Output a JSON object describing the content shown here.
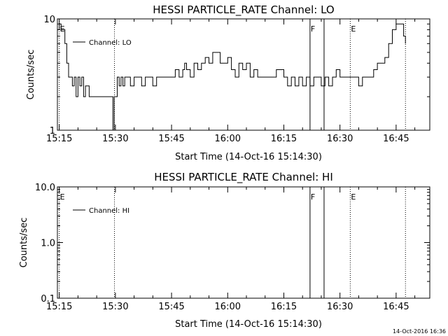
{
  "footer": {
    "timestamp": "14-Oct-2016 16:36"
  },
  "chart_data": [
    {
      "type": "line",
      "title": "HESSI PARTICLE_RATE Channel: LO",
      "xlabel": "Start Time (14-Oct-16 15:14:30)",
      "ylabel": "Counts/sec",
      "yscale": "log",
      "ylim": [
        1,
        10
      ],
      "yticks": [
        "1",
        "10"
      ],
      "xlim": [
        "15:14:30",
        "16:54:00"
      ],
      "xticks": [
        "15:15",
        "15:30",
        "15:45",
        "16:00",
        "16:15",
        "16:30",
        "16:45"
      ],
      "legend": {
        "position": "top-left",
        "entries": [
          "Channel: LO"
        ]
      },
      "grid": false,
      "events": [
        {
          "time": "15:15:00",
          "label": "E",
          "style": "dotted"
        },
        {
          "time": "15:29:45",
          "label": "",
          "style": "dotted"
        },
        {
          "time": "16:22:00",
          "label": "F",
          "style": "solid"
        },
        {
          "time": "16:25:45",
          "label": "",
          "style": "solid"
        },
        {
          "time": "16:32:45",
          "label": "E",
          "style": "dotted"
        },
        {
          "time": "16:47:30",
          "label": "",
          "style": "dotted"
        }
      ],
      "series": [
        {
          "name": "Channel: LO",
          "x": [
            "15:14:30",
            "15:15:00",
            "15:15:30",
            "15:16:00",
            "15:16:30",
            "15:17:00",
            "15:17:30",
            "15:18:00",
            "15:18:30",
            "15:19:00",
            "15:19:30",
            "15:20:00",
            "15:20:30",
            "15:21:00",
            "15:21:30",
            "15:22:00",
            "15:23:00",
            "15:24:00",
            "15:25:00",
            "15:26:00",
            "15:27:00",
            "15:28:00",
            "15:29:00",
            "15:29:20",
            "15:29:40",
            "15:30:00",
            "15:30:30",
            "15:31:00",
            "15:31:30",
            "15:32:00",
            "15:32:30",
            "15:33:00",
            "15:34:00",
            "15:35:00",
            "15:36:00",
            "15:37:00",
            "15:38:00",
            "15:39:00",
            "15:40:00",
            "15:41:00",
            "15:42:00",
            "15:43:00",
            "15:44:00",
            "15:45:00",
            "15:46:00",
            "15:47:00",
            "15:48:00",
            "15:48:30",
            "15:49:00",
            "15:50:00",
            "15:51:00",
            "15:52:00",
            "15:53:00",
            "15:54:00",
            "15:55:00",
            "15:56:00",
            "15:57:00",
            "15:58:00",
            "15:59:00",
            "16:00:00",
            "16:01:00",
            "16:02:00",
            "16:03:00",
            "16:04:00",
            "16:05:00",
            "16:06:00",
            "16:07:00",
            "16:08:00",
            "16:09:00",
            "16:10:00",
            "16:11:00",
            "16:12:00",
            "16:13:00",
            "16:14:00",
            "16:15:00",
            "16:16:00",
            "16:17:00",
            "16:18:00",
            "16:19:00",
            "16:20:00",
            "16:21:00",
            "16:22:00",
            "16:23:00",
            "16:24:00",
            "16:25:00",
            "16:26:00",
            "16:27:00",
            "16:28:00",
            "16:29:00",
            "16:30:00",
            "16:31:00",
            "16:32:00",
            "16:33:00",
            "16:34:00",
            "16:35:00",
            "16:36:00",
            "16:37:00",
            "16:38:00",
            "16:39:00",
            "16:40:00",
            "16:41:00",
            "16:42:00",
            "16:43:00",
            "16:44:00",
            "16:45:00",
            "16:46:00",
            "16:47:00",
            "16:47:30"
          ],
          "y": [
            8,
            9,
            8,
            8,
            6,
            4,
            3,
            3,
            2.5,
            3,
            2,
            3,
            2.5,
            3,
            2,
            2.5,
            2,
            2,
            2,
            2,
            2,
            2,
            2,
            1,
            2,
            2,
            3,
            2.5,
            3,
            2.5,
            3,
            3,
            2.5,
            3,
            3,
            2.5,
            3,
            3,
            2.5,
            3,
            3,
            3,
            3,
            3,
            3.5,
            3,
            3.5,
            4,
            3.5,
            3,
            4,
            3.5,
            4,
            4.5,
            4,
            5,
            5,
            4,
            4,
            4.5,
            3.5,
            3,
            4,
            3.5,
            4,
            3,
            3.5,
            3,
            3,
            3,
            3,
            3,
            3.5,
            3.5,
            3,
            2.5,
            3,
            2.5,
            3,
            2.5,
            3,
            2.5,
            3,
            3,
            2.5,
            3,
            2.5,
            3,
            3.5,
            3,
            3,
            3,
            3,
            3,
            2.5,
            3,
            3,
            3,
            3.5,
            4,
            4,
            4.5,
            6,
            8,
            9,
            9,
            7,
            6
          ]
        }
      ]
    },
    {
      "type": "line",
      "title": "HESSI PARTICLE_RATE Channel: HI",
      "xlabel": "Start Time (14-Oct-16 15:14:30)",
      "ylabel": "Counts/sec",
      "yscale": "log",
      "ylim": [
        0.1,
        10
      ],
      "yticks": [
        "0.1",
        "1.0",
        "10.0"
      ],
      "xlim": [
        "15:14:30",
        "16:54:00"
      ],
      "xticks": [
        "15:15",
        "15:30",
        "15:45",
        "16:00",
        "16:15",
        "16:30",
        "16:45"
      ],
      "legend": {
        "position": "top-left",
        "entries": [
          "Channel: HI"
        ]
      },
      "grid": false,
      "events": [
        {
          "time": "15:15:00",
          "label": "E",
          "style": "dotted"
        },
        {
          "time": "15:29:45",
          "label": "",
          "style": "dotted"
        },
        {
          "time": "16:22:00",
          "label": "F",
          "style": "solid"
        },
        {
          "time": "16:25:45",
          "label": "",
          "style": "solid"
        },
        {
          "time": "16:32:45",
          "label": "E",
          "style": "dotted"
        },
        {
          "time": "16:47:30",
          "label": "",
          "style": "dotted"
        }
      ],
      "series": [
        {
          "name": "Channel: HI",
          "x": [],
          "y": []
        }
      ]
    }
  ]
}
